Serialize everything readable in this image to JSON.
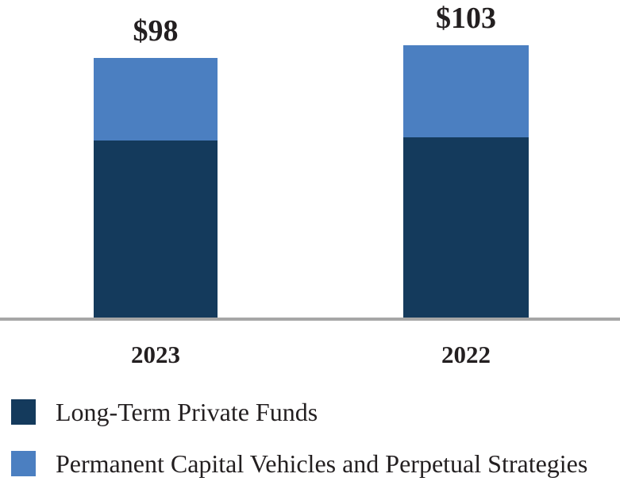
{
  "chart_data": {
    "type": "bar",
    "stacked": true,
    "categories": [
      "2023",
      "2022"
    ],
    "series": [
      {
        "name": "Long-Term Private Funds",
        "color": "#143a5c",
        "values": [
          67,
          68
        ]
      },
      {
        "name": "Permanent Capital Vehicles and Perpetual Strategies",
        "color": "#4b7fc1",
        "values": [
          31,
          35
        ]
      }
    ],
    "totals": [
      98,
      103
    ],
    "total_labels": [
      "$98",
      "$103"
    ],
    "value_prefix": "$",
    "ylim": [
      0,
      120
    ],
    "grid": false,
    "legend_position": "bottom-left",
    "axis_baseline_color": "#a6a6a6"
  },
  "colors": {
    "text": "#231f20",
    "background": "#ffffff"
  }
}
